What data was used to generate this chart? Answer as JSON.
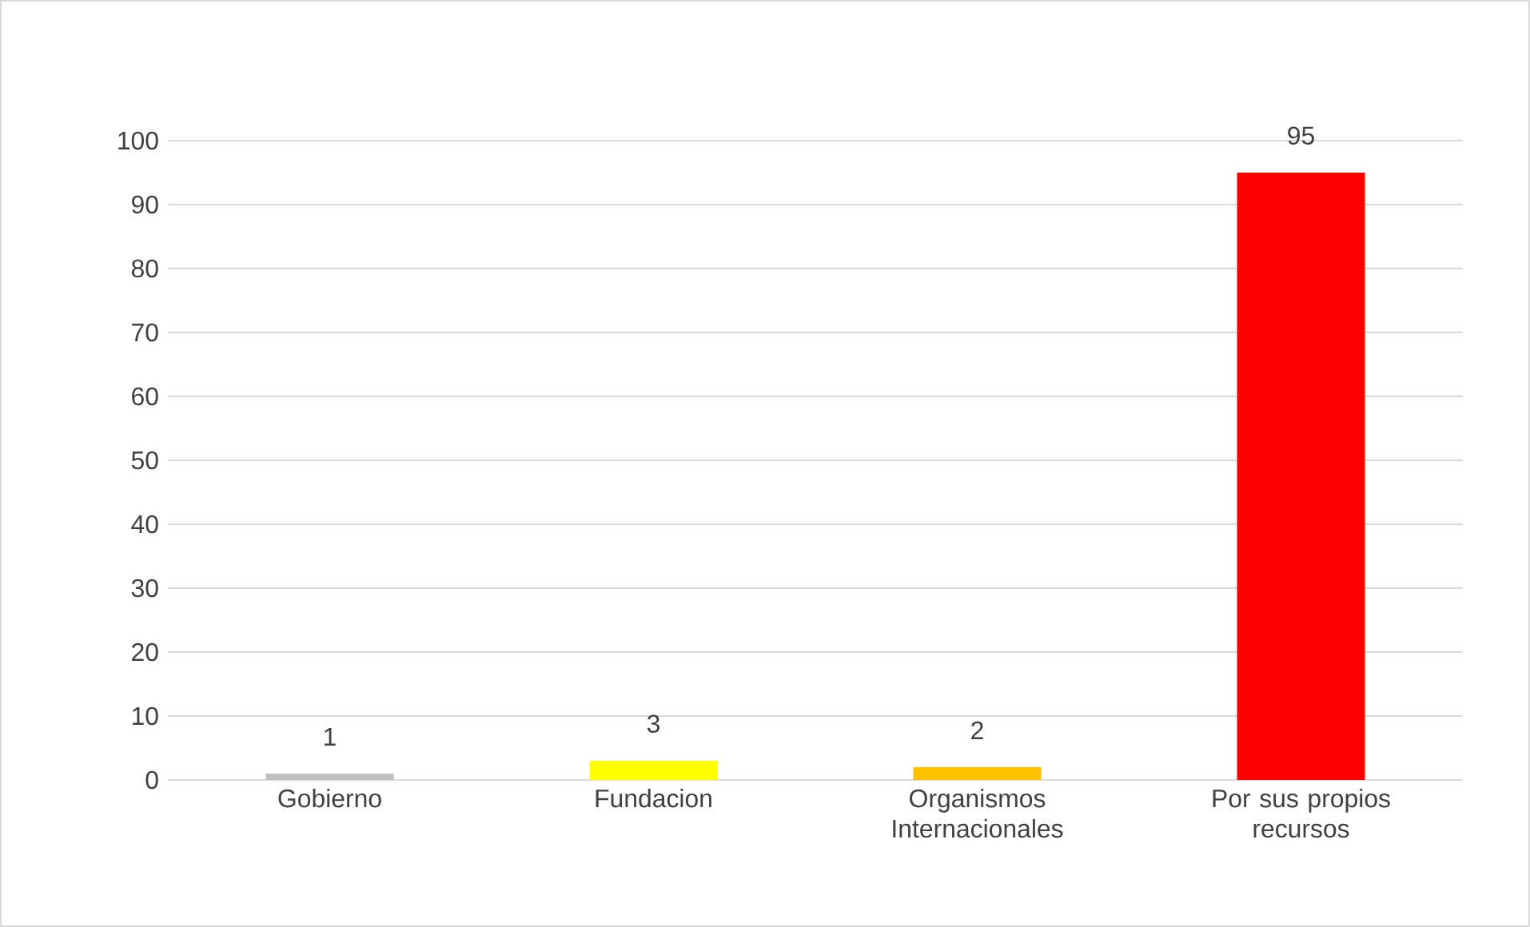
{
  "chart_data": {
    "type": "bar",
    "categories": [
      "Gobierno",
      "Fundacion",
      "Organismos Internacionales",
      "Por sus propios recursos"
    ],
    "values": [
      1,
      3,
      2,
      95
    ],
    "colors": [
      "#c0c0c0",
      "#ffff00",
      "#ffc000",
      "#ff0000"
    ],
    "ylim": [
      0,
      100
    ],
    "yticks": [
      0,
      10,
      20,
      30,
      40,
      50,
      60,
      70,
      80,
      90,
      100
    ],
    "grid": "y",
    "data_labels": true
  }
}
